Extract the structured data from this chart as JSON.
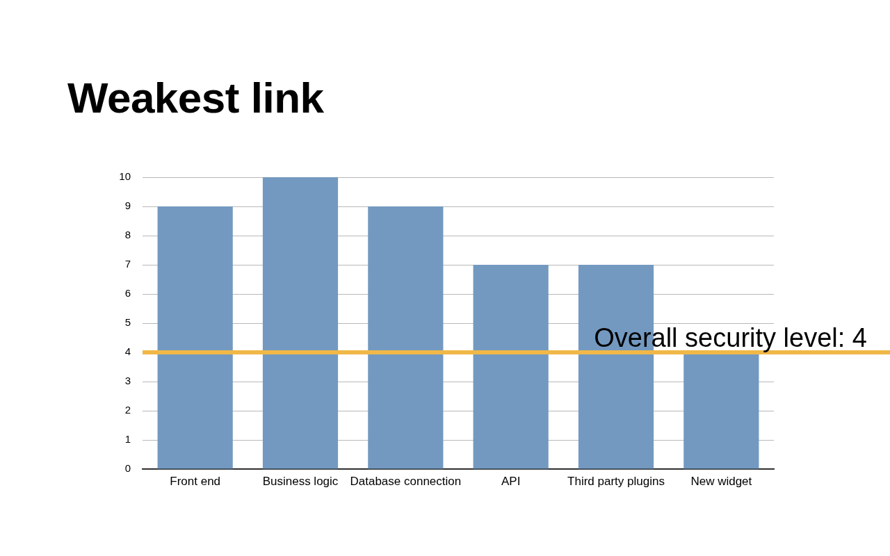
{
  "chart_data": {
    "type": "bar",
    "title": "Weakest link",
    "categories": [
      "Front end",
      "Business logic",
      "Database connection",
      "API",
      "Third party plugins",
      "New widget"
    ],
    "values": [
      9,
      10,
      9,
      7,
      7,
      4
    ],
    "color": "#7399c0",
    "ylim": [
      0,
      10
    ],
    "yticks": [
      0,
      1,
      2,
      3,
      4,
      5,
      6,
      7,
      8,
      9,
      10
    ],
    "grid": "y",
    "ref_lines": [
      {
        "axis": "y",
        "value": 4,
        "label": "Overall security level: 4",
        "color": "#f0b848"
      }
    ]
  }
}
